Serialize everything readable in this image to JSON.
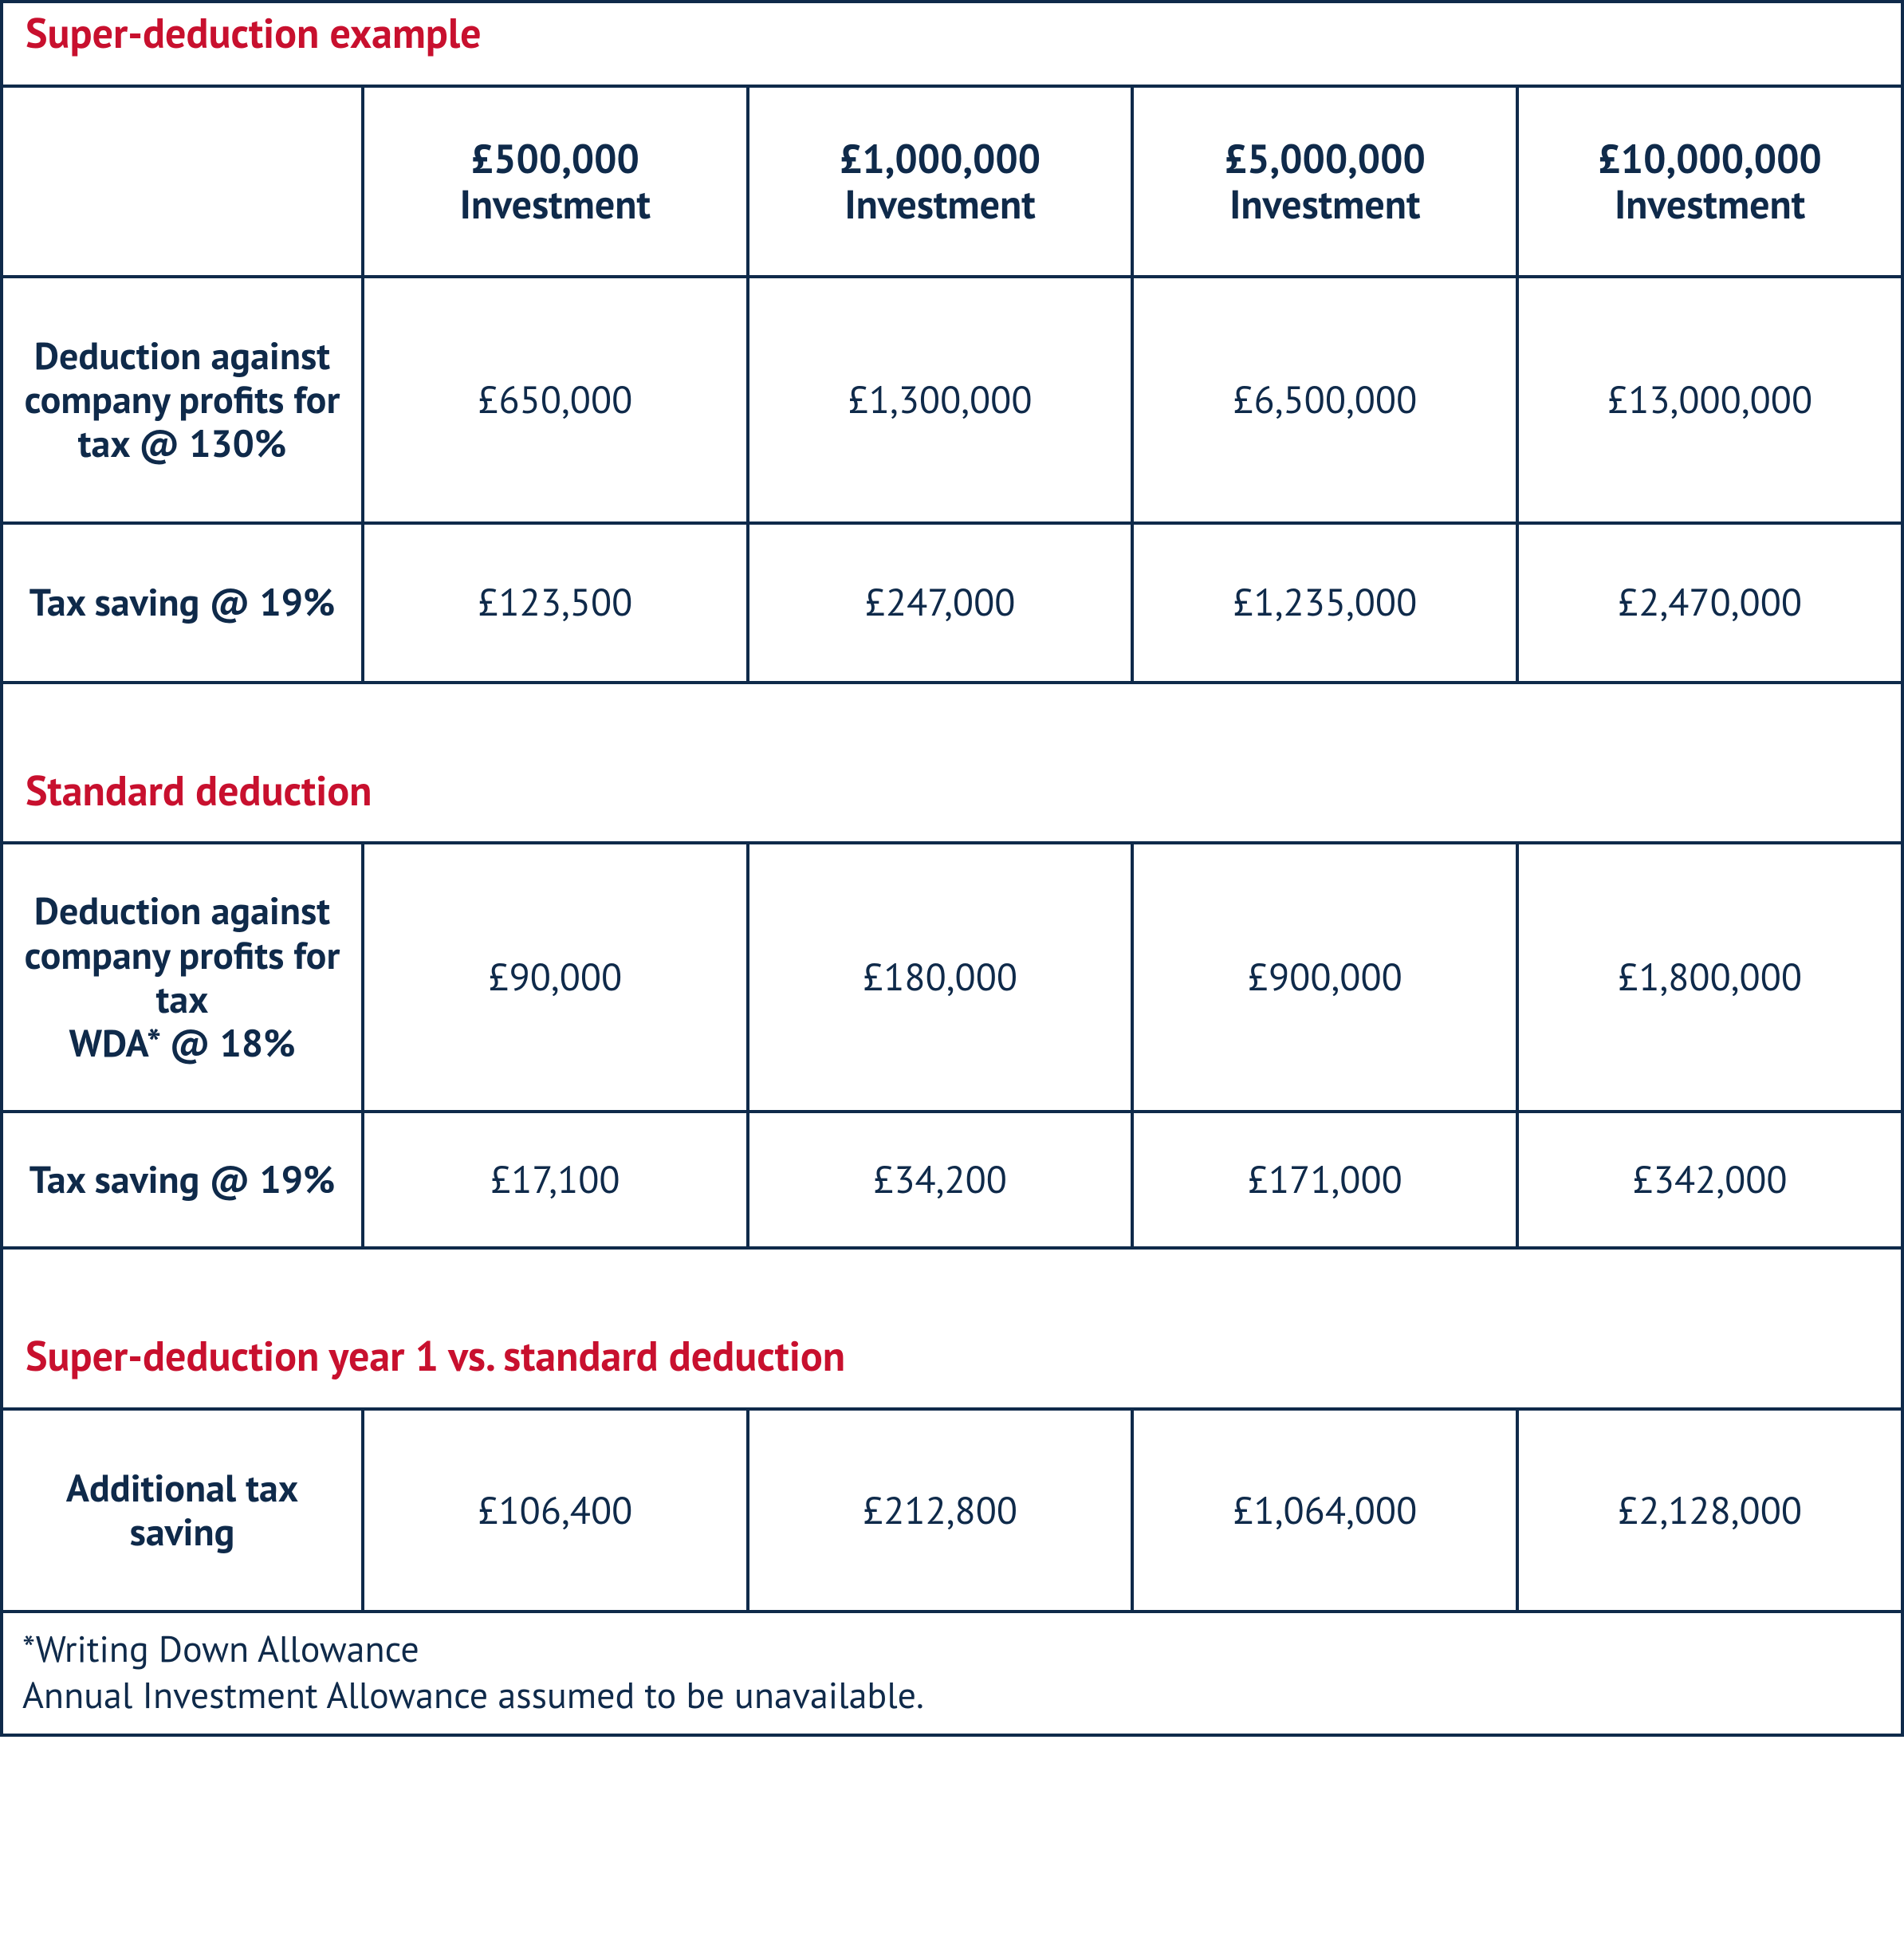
{
  "table": {
    "border_color": "#0f2a4a",
    "accent_color": "#c8102e",
    "text_color": "#0f2a4a",
    "background_color": "#ffffff",
    "column_widths_pct": [
      19,
      20.25,
      20.25,
      20.25,
      20.25
    ],
    "columns": [
      "",
      "£500,000 Investment",
      "£1,000,000 Investment",
      "£5,000,000 Investment",
      "£10,000,000 Investment"
    ],
    "sections": {
      "super": {
        "title": "Super-deduction example",
        "rows": [
          {
            "label": "Deduction against company profits for tax @ 130%",
            "values": [
              "£650,000",
              "£1,300,000",
              "£6,500,000",
              "£13,000,000"
            ]
          },
          {
            "label": "Tax saving @ 19%",
            "values": [
              "£123,500",
              "£247,000",
              "£1,235,000",
              "£2,470,000"
            ]
          }
        ]
      },
      "standard": {
        "title": "Standard deduction",
        "rows": [
          {
            "label": "Deduction against company profits for tax\nWDA* @ 18%",
            "values": [
              "£90,000",
              "£180,000",
              "£900,000",
              "£1,800,000"
            ]
          },
          {
            "label": "Tax saving @ 19%",
            "values": [
              "£17,100",
              "£34,200",
              "£171,000",
              "£342,000"
            ]
          }
        ]
      },
      "compare": {
        "title": "Super-deduction year 1 vs. standard deduction",
        "rows": [
          {
            "label": "Additional tax saving",
            "values": [
              "£106,400",
              "£212,800",
              "£1,064,000",
              "£2,128,000"
            ]
          }
        ]
      }
    },
    "footnote_line1": "*Writing Down Allowance",
    "footnote_line2": "Annual Investment Allowance assumed to be unavailable.",
    "fontsizes": {
      "section_title": 52,
      "column_header": 50,
      "cell": 48,
      "footnote": 46
    }
  }
}
